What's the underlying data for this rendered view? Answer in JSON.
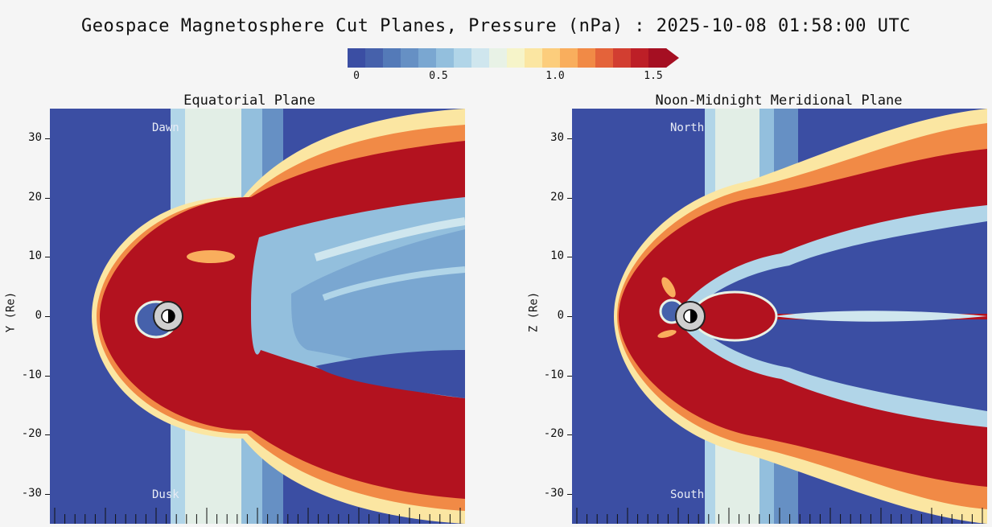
{
  "title": "Geospace Magnetosphere Cut Planes, Pressure (nPa) : 2025-10-08 01:58:00 UTC",
  "colors": {
    "background": "#f5f5f5",
    "deep_blue": "#3a4ca0",
    "red": "#b3121f"
  },
  "colorbar": {
    "tick_labels": [
      "0",
      "0.5",
      "1.0",
      "1.5"
    ],
    "stops": [
      "#3b4ea3",
      "#4661ab",
      "#547ab8",
      "#6690c4",
      "#7aa7d1",
      "#93bfdd",
      "#b1d5e8",
      "#cfe6ee",
      "#e8f2e6",
      "#f6f4c9",
      "#fbe6a2",
      "#fccd7c",
      "#f9ae5d",
      "#f18a46",
      "#e4633a",
      "#d23e31",
      "#bd1f27",
      "#a50f22"
    ]
  },
  "chart_data": [
    {
      "type": "heatmap",
      "title": "Equatorial Plane",
      "ylabel": "Y (Re)",
      "ylim": [
        -35,
        35
      ],
      "yticks": [
        "30",
        "20",
        "10",
        "0",
        "-10",
        "-20",
        "-30"
      ],
      "region_labels": {
        "top": "Dawn",
        "bottom": "Dusk"
      },
      "value_range": [
        0,
        1.5
      ],
      "units": "nPa"
    },
    {
      "type": "heatmap",
      "title": "Noon-Midnight Meridional Plane",
      "ylabel": "Z (Re)",
      "ylim": [
        -35,
        35
      ],
      "yticks": [
        "30",
        "20",
        "10",
        "0",
        "-10",
        "-20",
        "-30"
      ],
      "region_labels": {
        "top": "North",
        "bottom": "South"
      },
      "value_range": [
        0,
        1.5
      ],
      "units": "nPa"
    }
  ]
}
